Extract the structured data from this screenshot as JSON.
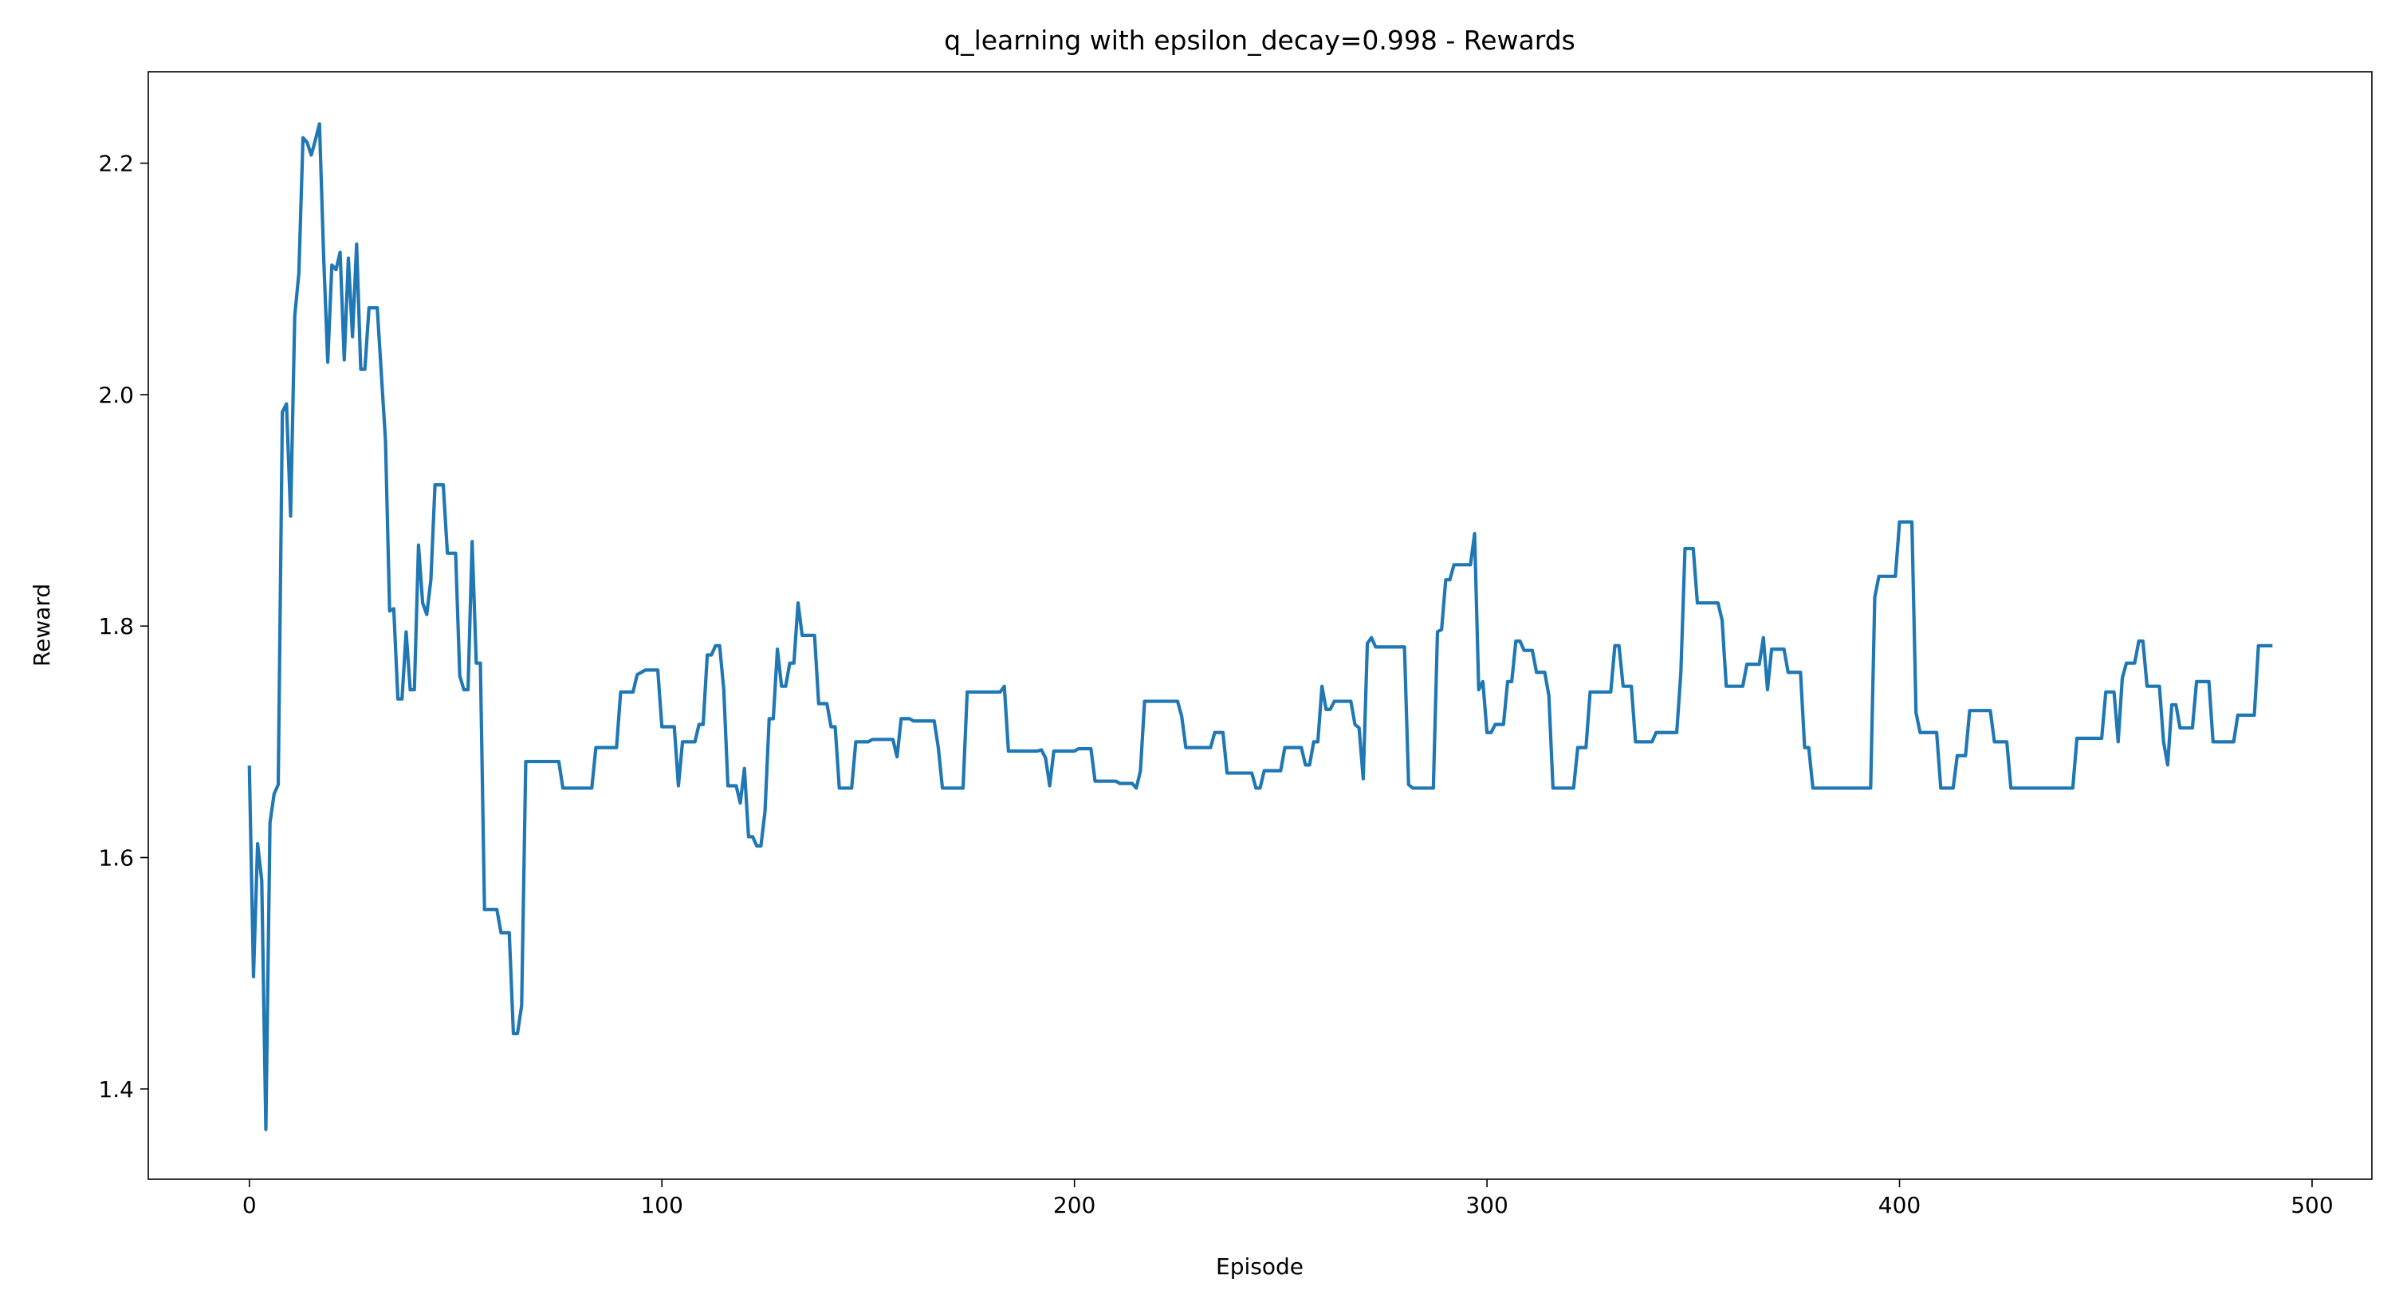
{
  "chart_data": {
    "type": "line",
    "title": "q_learning with epsilon_decay=0.998 - Rewards",
    "xlabel": "Episode",
    "ylabel": "Reward",
    "xlim": [
      -24.5,
      514.5
    ],
    "xticks": [
      0,
      100,
      200,
      300,
      400,
      500
    ],
    "ylim": [
      1.322,
      2.279
    ],
    "yticks": [
      1.4,
      1.6,
      1.8,
      {
        "value": 2,
        "label": "2.0"
      },
      2.2
    ],
    "grid": false,
    "series": [
      {
        "color": "#1f77b4",
        "x": [
          0,
          1,
          2,
          3,
          4,
          5,
          6,
          7,
          8,
          9,
          10,
          11,
          12,
          13,
          14,
          15,
          16,
          17,
          18,
          19,
          20,
          21,
          22,
          23,
          24,
          25,
          26,
          27,
          28,
          29,
          31,
          33,
          34,
          35,
          36,
          37,
          38,
          39,
          40,
          41,
          42,
          43,
          44,
          45,
          47,
          48,
          50,
          51,
          52,
          53,
          54,
          55,
          56,
          57,
          60,
          61,
          63,
          64,
          65,
          66,
          67,
          75,
          76,
          83,
          84,
          89,
          90,
          93,
          94,
          96,
          99,
          100,
          103,
          104,
          105,
          108,
          109,
          110,
          111,
          112,
          113,
          114,
          115,
          116,
          118,
          119,
          120,
          121,
          122,
          123,
          124,
          125,
          126,
          127,
          128,
          129,
          130,
          131,
          132,
          133,
          134,
          137,
          138,
          140,
          141,
          142,
          143,
          146,
          147,
          150,
          151,
          156,
          157,
          158,
          160,
          161,
          166,
          167,
          168,
          173,
          174,
          182,
          183,
          184,
          191,
          192,
          193,
          194,
          195,
          200,
          201,
          204,
          205,
          210,
          211,
          214,
          215,
          216,
          217,
          225,
          226,
          227,
          233,
          234,
          236,
          237,
          243,
          244,
          245,
          246,
          250,
          251,
          255,
          256,
          257,
          258,
          259,
          260,
          261,
          262,
          263,
          267,
          268,
          269,
          270,
          271,
          272,
          273,
          280,
          281,
          282,
          287,
          288,
          289,
          290,
          291,
          292,
          296,
          297,
          298,
          299,
          300,
          301,
          302,
          304,
          305,
          306,
          307,
          308,
          309,
          311,
          312,
          314,
          315,
          316,
          321,
          322,
          324,
          325,
          330,
          331,
          332,
          333,
          335,
          336,
          340,
          341,
          346,
          347,
          348,
          350,
          351,
          356,
          357,
          358,
          362,
          363,
          366,
          367,
          368,
          369,
          372,
          373,
          376,
          377,
          378,
          379,
          393,
          394,
          395,
          399,
          400,
          403,
          404,
          405,
          409,
          410,
          413,
          414,
          416,
          417,
          422,
          423,
          426,
          427,
          442,
          443,
          449,
          450,
          452,
          453,
          454,
          455,
          457,
          458,
          459,
          460,
          463,
          464,
          465,
          466,
          467,
          468,
          471,
          472,
          475,
          476,
          481,
          482,
          486,
          487,
          490
        ],
        "values": [
          1.678,
          1.497,
          1.612,
          1.58,
          1.365,
          1.63,
          1.655,
          1.663,
          1.985,
          1.992,
          1.895,
          2.068,
          2.105,
          2.222,
          2.218,
          2.207,
          2.22,
          2.234,
          2.12,
          2.028,
          2.112,
          2.108,
          2.123,
          2.03,
          2.118,
          2.05,
          2.13,
          2.022,
          2.022,
          2.075,
          2.075,
          1.96,
          1.813,
          1.815,
          1.737,
          1.737,
          1.795,
          1.745,
          1.745,
          1.87,
          1.82,
          1.81,
          1.84,
          1.922,
          1.922,
          1.863,
          1.863,
          1.757,
          1.745,
          1.745,
          1.873,
          1.768,
          1.768,
          1.555,
          1.555,
          1.535,
          1.535,
          1.448,
          1.448,
          1.472,
          1.683,
          1.683,
          1.66,
          1.66,
          1.695,
          1.695,
          1.743,
          1.743,
          1.758,
          1.762,
          1.762,
          1.713,
          1.713,
          1.662,
          1.7,
          1.7,
          1.715,
          1.715,
          1.775,
          1.775,
          1.783,
          1.783,
          1.745,
          1.662,
          1.662,
          1.647,
          1.677,
          1.618,
          1.618,
          1.61,
          1.61,
          1.64,
          1.72,
          1.72,
          1.78,
          1.748,
          1.748,
          1.768,
          1.768,
          1.82,
          1.792,
          1.792,
          1.733,
          1.733,
          1.713,
          1.713,
          1.66,
          1.66,
          1.7,
          1.7,
          1.702,
          1.702,
          1.687,
          1.72,
          1.72,
          1.718,
          1.718,
          1.695,
          1.66,
          1.66,
          1.743,
          1.743,
          1.748,
          1.692,
          1.692,
          1.693,
          1.686,
          1.662,
          1.692,
          1.692,
          1.694,
          1.694,
          1.666,
          1.666,
          1.664,
          1.664,
          1.66,
          1.675,
          1.735,
          1.735,
          1.722,
          1.695,
          1.695,
          1.708,
          1.708,
          1.673,
          1.673,
          1.66,
          1.66,
          1.675,
          1.675,
          1.695,
          1.695,
          1.68,
          1.68,
          1.7,
          1.7,
          1.748,
          1.728,
          1.728,
          1.735,
          1.735,
          1.715,
          1.712,
          1.668,
          1.785,
          1.79,
          1.782,
          1.782,
          1.663,
          1.66,
          1.66,
          1.795,
          1.797,
          1.84,
          1.84,
          1.853,
          1.853,
          1.88,
          1.745,
          1.752,
          1.708,
          1.708,
          1.715,
          1.715,
          1.752,
          1.752,
          1.787,
          1.787,
          1.779,
          1.779,
          1.76,
          1.76,
          1.74,
          1.66,
          1.66,
          1.695,
          1.695,
          1.743,
          1.743,
          1.783,
          1.783,
          1.748,
          1.748,
          1.7,
          1.7,
          1.708,
          1.708,
          1.76,
          1.867,
          1.867,
          1.82,
          1.82,
          1.805,
          1.748,
          1.748,
          1.767,
          1.767,
          1.79,
          1.745,
          1.78,
          1.78,
          1.76,
          1.76,
          1.695,
          1.695,
          1.66,
          1.66,
          1.825,
          1.843,
          1.843,
          1.89,
          1.89,
          1.725,
          1.708,
          1.708,
          1.66,
          1.66,
          1.688,
          1.688,
          1.727,
          1.727,
          1.7,
          1.7,
          1.66,
          1.66,
          1.703,
          1.703,
          1.743,
          1.743,
          1.7,
          1.755,
          1.768,
          1.768,
          1.787,
          1.787,
          1.748,
          1.748,
          1.7,
          1.68,
          1.732,
          1.732,
          1.712,
          1.712,
          1.752,
          1.752,
          1.7,
          1.7,
          1.723,
          1.723,
          1.783,
          1.783
        ]
      }
    ]
  }
}
